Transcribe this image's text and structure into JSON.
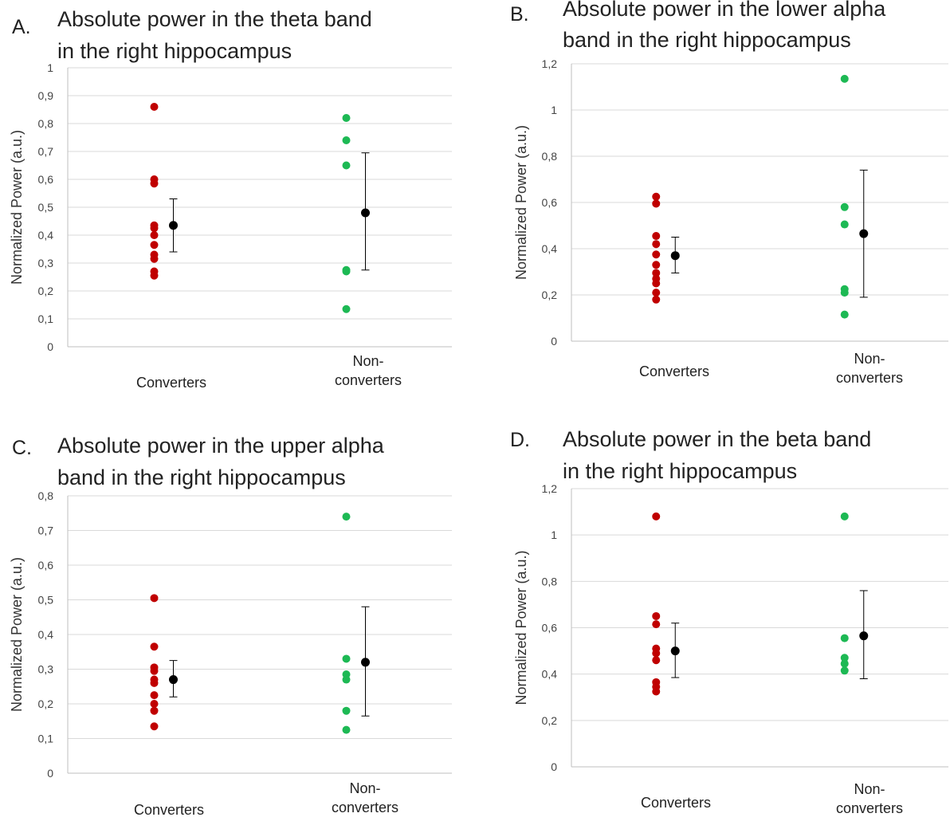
{
  "colors": {
    "converters": "#c00000",
    "non_converters": "#1db954",
    "mean": "#000000",
    "grid": "#d9d9d9",
    "axis": "#bfbfbf"
  },
  "chart_data": [
    {
      "type": "scatter",
      "panel": "A.",
      "title_lines": [
        "Absolute power in the theta band",
        "in the right hippocampus"
      ],
      "ylabel": "Normalized Power (a.u.)",
      "ylim": [
        0,
        1
      ],
      "yticks": [
        0,
        0.1,
        0.2,
        0.3,
        0.4,
        0.5,
        0.6,
        0.7,
        0.8,
        0.9,
        1
      ],
      "ytick_labels": [
        "0",
        "0,1",
        "0,2",
        "0,3",
        "0,4",
        "0,5",
        "0,6",
        "0,7",
        "0,8",
        "0,9",
        "1"
      ],
      "grid": true,
      "categories": [
        {
          "label_lines": [
            "Converters"
          ],
          "color_key": "converters",
          "values": [
            0.86,
            0.6,
            0.585,
            0.435,
            0.425,
            0.4,
            0.365,
            0.33,
            0.315,
            0.27,
            0.255
          ],
          "mean": 0.435,
          "err_low": 0.34,
          "err_high": 0.53
        },
        {
          "label_lines": [
            "Non-",
            "converters"
          ],
          "color_key": "non_converters",
          "values": [
            0.82,
            0.74,
            0.65,
            0.275,
            0.27,
            0.135
          ],
          "mean": 0.48,
          "err_low": 0.275,
          "err_high": 0.695
        }
      ]
    },
    {
      "type": "scatter",
      "panel": "B.",
      "title_lines": [
        "Absolute power in the lower alpha",
        "band in the right hippocampus"
      ],
      "ylabel": "Normalized Power (a.u.)",
      "ylim": [
        0,
        1.2
      ],
      "yticks": [
        0,
        0.2,
        0.4,
        0.6,
        0.8,
        1,
        1.2
      ],
      "ytick_labels": [
        "0",
        "0,2",
        "0,4",
        "0,6",
        "0,8",
        "1",
        "1,2"
      ],
      "grid": true,
      "categories": [
        {
          "label_lines": [
            "Converters"
          ],
          "color_key": "converters",
          "values": [
            0.625,
            0.595,
            0.455,
            0.42,
            0.375,
            0.33,
            0.295,
            0.27,
            0.25,
            0.21,
            0.18
          ],
          "mean": 0.37,
          "err_low": 0.295,
          "err_high": 0.45
        },
        {
          "label_lines": [
            "Non-",
            "converters"
          ],
          "color_key": "non_converters",
          "values": [
            1.135,
            0.58,
            0.505,
            0.225,
            0.21,
            0.115
          ],
          "mean": 0.465,
          "err_low": 0.19,
          "err_high": 0.74
        }
      ]
    },
    {
      "type": "scatter",
      "panel": "C.",
      "title_lines": [
        "Absolute power in the upper alpha",
        "band in the right hippocampus"
      ],
      "ylabel": "Normalized Power (a.u.)",
      "ylim": [
        0,
        0.8
      ],
      "yticks": [
        0,
        0.1,
        0.2,
        0.3,
        0.4,
        0.5,
        0.6,
        0.7,
        0.8
      ],
      "ytick_labels": [
        "0",
        "0,1",
        "0,2",
        "0,3",
        "0,4",
        "0,5",
        "0,6",
        "0,7",
        "0,8"
      ],
      "grid": true,
      "categories": [
        {
          "label_lines": [
            "Converters"
          ],
          "color_key": "converters",
          "values": [
            0.505,
            0.365,
            0.305,
            0.295,
            0.27,
            0.26,
            0.225,
            0.2,
            0.18,
            0.135
          ],
          "mean": 0.27,
          "err_low": 0.22,
          "err_high": 0.325
        },
        {
          "label_lines": [
            "Non-",
            "converters"
          ],
          "color_key": "non_converters",
          "values": [
            0.74,
            0.33,
            0.285,
            0.27,
            0.18,
            0.125
          ],
          "mean": 0.32,
          "err_low": 0.165,
          "err_high": 0.48
        }
      ]
    },
    {
      "type": "scatter",
      "panel": "D.",
      "title_lines": [
        "Absolute power in the beta band",
        "in the right hippocampus"
      ],
      "ylabel": "Normalized Power (a.u.)",
      "ylim": [
        0,
        1.2
      ],
      "yticks": [
        0,
        0.2,
        0.4,
        0.6,
        0.8,
        1,
        1.2
      ],
      "ytick_labels": [
        "0",
        "0,2",
        "0,4",
        "0,6",
        "0,8",
        "1",
        "1,2"
      ],
      "grid": true,
      "categories": [
        {
          "label_lines": [
            "Converters"
          ],
          "color_key": "converters",
          "values": [
            1.08,
            0.65,
            0.615,
            0.51,
            0.49,
            0.46,
            0.365,
            0.345,
            0.325
          ],
          "mean": 0.5,
          "err_low": 0.385,
          "err_high": 0.62
        },
        {
          "label_lines": [
            "Non-",
            "converters"
          ],
          "color_key": "non_converters",
          "values": [
            1.08,
            0.555,
            0.47,
            0.445,
            0.415
          ],
          "mean": 0.565,
          "err_low": 0.38,
          "err_high": 0.76
        }
      ]
    }
  ]
}
